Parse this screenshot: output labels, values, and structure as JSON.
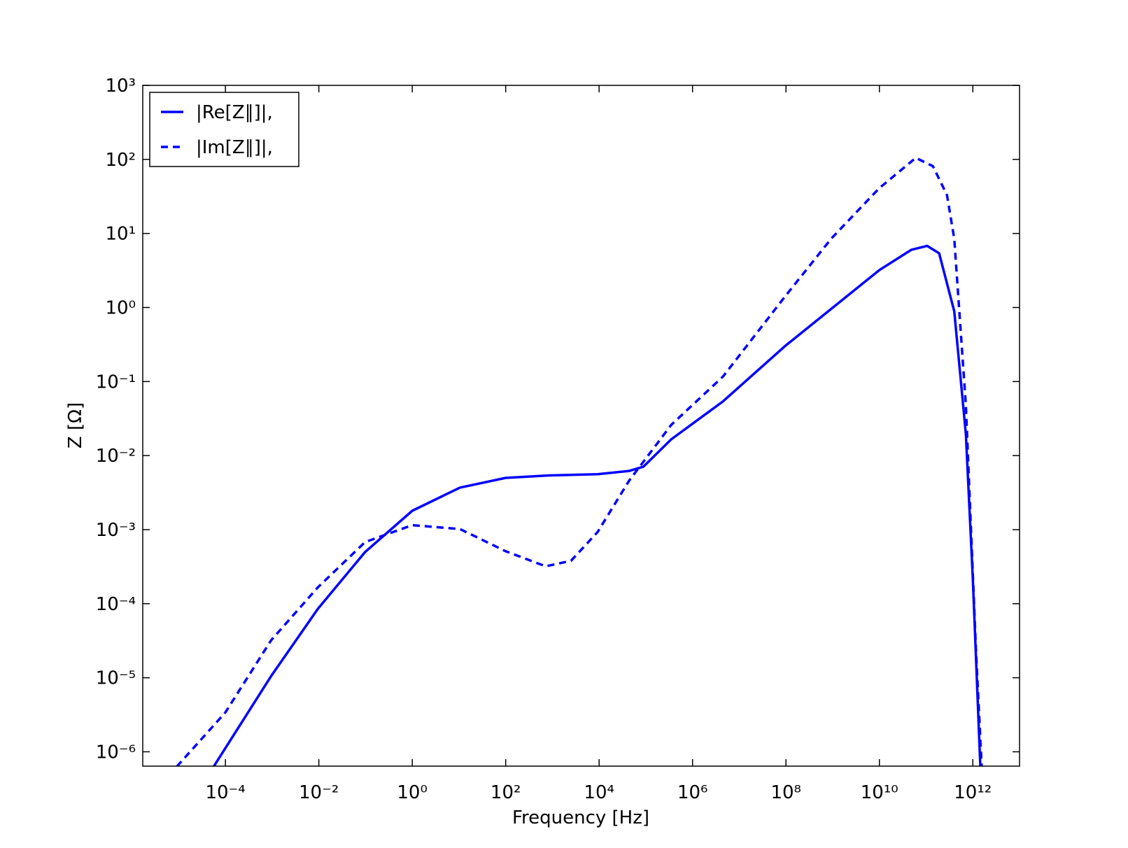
{
  "chart_data": {
    "type": "line",
    "xlabel": "Frequency [Hz]",
    "ylabel": "Z  [Ω]",
    "xscale": "log",
    "yscale": "log",
    "legend": "upper left",
    "xlim": [
      1.7e-06,
      10000000000000.0
    ],
    "ylim": [
      6.4e-07,
      1000
    ],
    "xticks": [
      {
        "value": 0.0001,
        "label": "10⁻⁴"
      },
      {
        "value": 0.01,
        "label": "10⁻²"
      },
      {
        "value": 1,
        "label": "10⁰"
      },
      {
        "value": 100,
        "label": "10²"
      },
      {
        "value": 10000,
        "label": "10⁴"
      },
      {
        "value": 1000000,
        "label": "10⁶"
      },
      {
        "value": 100000000,
        "label": "10⁸"
      },
      {
        "value": 10000000000,
        "label": "10¹⁰"
      },
      {
        "value": 1000000000000,
        "label": "10¹²"
      }
    ],
    "yticks": [
      {
        "value": 1e-06,
        "label": "10⁻⁶"
      },
      {
        "value": 1e-05,
        "label": "10⁻⁵"
      },
      {
        "value": 0.0001,
        "label": "10⁻⁴"
      },
      {
        "value": 0.001,
        "label": "10⁻³"
      },
      {
        "value": 0.01,
        "label": "10⁻²"
      },
      {
        "value": 0.1,
        "label": "10⁻¹"
      },
      {
        "value": 1,
        "label": "10⁰"
      },
      {
        "value": 10,
        "label": "10¹"
      },
      {
        "value": 100,
        "label": "10²"
      },
      {
        "value": 1000,
        "label": "10³"
      }
    ],
    "series": [
      {
        "name": "|Re[Z∥]|,",
        "color": "#0000ff",
        "linestyle": "solid",
        "x": [
          5.6e-05,
          0.00095,
          0.0095,
          0.098,
          1,
          10.5,
          100,
          850,
          9300,
          44000.0,
          89000.0,
          350000.0,
          4500000.0,
          95000000.0,
          10000000000.0,
          48000000000.0,
          105000000000.0,
          190000000000.0,
          400000000000.0,
          710000000000.0,
          1000000000000.0,
          1450000000000.0
        ],
        "values": [
          6.3e-07,
          1.05e-05,
          8.5e-05,
          0.0005,
          0.0018,
          0.0037,
          0.005,
          0.0054,
          0.0056,
          0.0062,
          0.0071,
          0.0166,
          0.054,
          0.3,
          3.2,
          6,
          6.8,
          5.4,
          0.89,
          0.0195,
          0.00022,
          6.3e-07
        ]
      },
      {
        "name": "|Im[Z∥]|,",
        "color": "#0000ff",
        "linestyle": "dashed",
        "x": [
          9.1e-06,
          0.0001,
          0.00095,
          0.0095,
          0.098,
          1,
          10.5,
          100,
          720,
          2500,
          9300,
          44000.0,
          350000.0,
          4500000.0,
          95000000.0,
          930000000.0,
          10000000000.0,
          60000000000.0,
          140000000000.0,
          280000000000.0,
          400000000000.0,
          710000000000.0,
          1170000000000.0,
          1550000000000.0
        ],
        "values": [
          6.3e-07,
          3.4e-06,
          3.2e-05,
          0.000166,
          0.00068,
          0.00115,
          0.00102,
          0.00051,
          0.00032,
          0.00038,
          0.00093,
          0.0046,
          0.026,
          0.117,
          1.4,
          8.5,
          41,
          105,
          81,
          33,
          8.5,
          0.048,
          2.3e-05,
          6.3e-07
        ]
      }
    ]
  }
}
